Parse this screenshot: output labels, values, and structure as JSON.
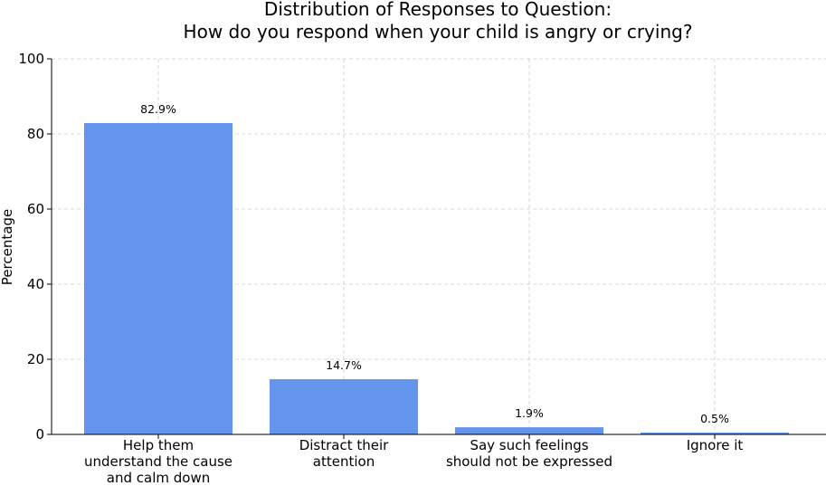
{
  "chart_data": {
    "type": "bar",
    "title_lines": [
      "Distribution of Responses to Question:",
      "How do you respond when your child is angry or crying?"
    ],
    "xlabel": "",
    "ylabel": "Percentage",
    "ylim": [
      0,
      100
    ],
    "yticks": [
      "0",
      "20",
      "40",
      "60",
      "80",
      "100"
    ],
    "grid": true,
    "bar_color": "#6495ED",
    "categories": [
      [
        "Help them",
        "understand the cause",
        "and calm down"
      ],
      [
        "Distract their",
        "attention"
      ],
      [
        "Say such feelings",
        "should not be expressed"
      ],
      [
        "Ignore it"
      ]
    ],
    "values": [
      82.9,
      14.7,
      1.9,
      0.5
    ],
    "data_labels": [
      "82.9%",
      "14.7%",
      "1.9%",
      "0.5%"
    ]
  }
}
